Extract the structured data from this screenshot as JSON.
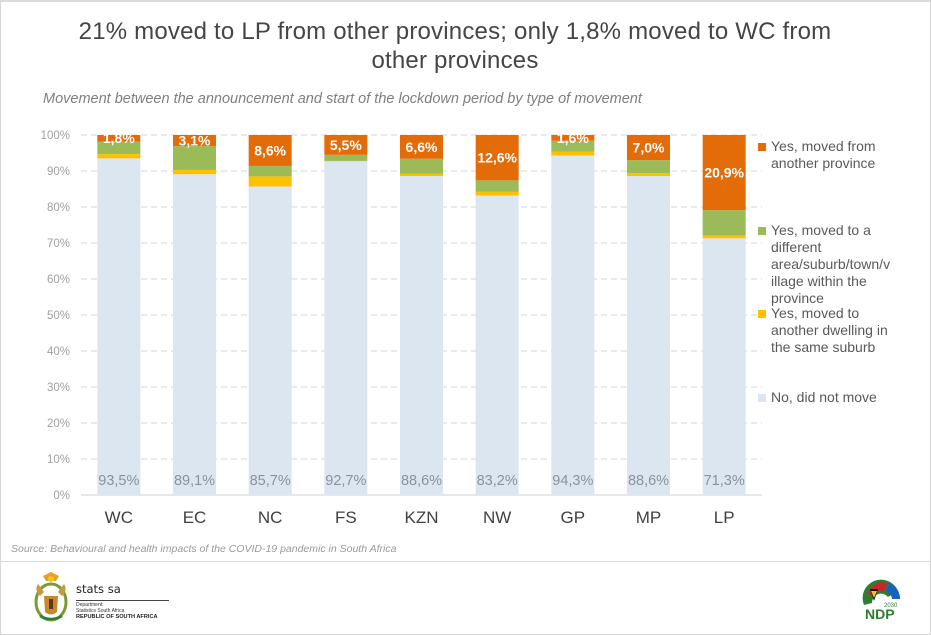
{
  "header": {
    "title_line1": "21% moved to LP from other provinces; only 1,8% moved to WC from",
    "title_line2": "other provinces",
    "subtitle": "Movement between the announcement and start of the lockdown period by type of movement"
  },
  "footer": {
    "source": "Source: Behavioural and health impacts of the COVID-19 pandemic in South Africa",
    "statssa_name": "stats sa",
    "statssa_dept_line1": "Department:",
    "statssa_dept_line2": "Statistics South Africa",
    "statssa_country": "REPUBLIC OF SOUTH AFRICA",
    "ndp_year": "2030",
    "ndp_text": "NDP"
  },
  "chart_data": {
    "type": "bar",
    "stacked": true,
    "percent_stacked": true,
    "title": "21% moved to LP from other provinces; only 1,8% moved to WC from other provinces",
    "subtitle": "Movement between the announcement and start of the lockdown period by type of movement",
    "xlabel": "",
    "ylabel": "",
    "ylim": [
      0,
      100
    ],
    "yticks": [
      0,
      10,
      20,
      30,
      40,
      50,
      60,
      70,
      80,
      90,
      100
    ],
    "ytick_labels": [
      "0%",
      "10%",
      "20%",
      "30%",
      "40%",
      "50%",
      "60%",
      "70%",
      "80%",
      "90%",
      "100%"
    ],
    "grid": "horizontal-dashed",
    "legend_position": "right",
    "categories": [
      "WC",
      "EC",
      "NC",
      "FS",
      "KZN",
      "NW",
      "GP",
      "MP",
      "LP"
    ],
    "series": [
      {
        "name": "No, did not move",
        "color": "#DCE6F1",
        "values": [
          93.5,
          89.1,
          85.7,
          92.7,
          88.6,
          83.2,
          94.3,
          88.6,
          71.3
        ],
        "labels": [
          "93,5%",
          "89,1%",
          "85,7%",
          "92,7%",
          "88,6%",
          "83,2%",
          "94,3%",
          "88,6%",
          "71,3%"
        ]
      },
      {
        "name": "Yes, moved to another dwelling in the same suburb",
        "color": "#FFC000",
        "values": [
          1.2,
          1.2,
          2.8,
          0.1,
          0.6,
          1.0,
          1.1,
          0.8,
          0.8
        ],
        "labels": null
      },
      {
        "name": "Yes, moved to a different area/suburb/town/village within the province",
        "color": "#9BBB59",
        "values": [
          3.5,
          6.6,
          2.9,
          1.7,
          4.2,
          3.2,
          3.0,
          3.6,
          7.0
        ],
        "labels": null
      },
      {
        "name": "Yes, moved from another province",
        "color": "#E36C09",
        "values": [
          1.8,
          3.1,
          8.6,
          5.5,
          6.6,
          12.6,
          1.6,
          7.0,
          20.9
        ],
        "labels": [
          "1,8%",
          "3,1%",
          "8,6%",
          "5,5%",
          "6,6%",
          "12,6%",
          "1,6%",
          "7,0%",
          "20,9%"
        ]
      }
    ],
    "legend": [
      {
        "label": "Yes, moved from another province",
        "color": "#E36C09"
      },
      {
        "label": "Yes, moved to a different area/suburb/town/village within the province",
        "color": "#9BBB59"
      },
      {
        "label": "Yes, moved to another dwelling in the same suburb",
        "color": "#FFC000"
      },
      {
        "label": "No, did not move",
        "color": "#DCE6F1"
      }
    ]
  }
}
